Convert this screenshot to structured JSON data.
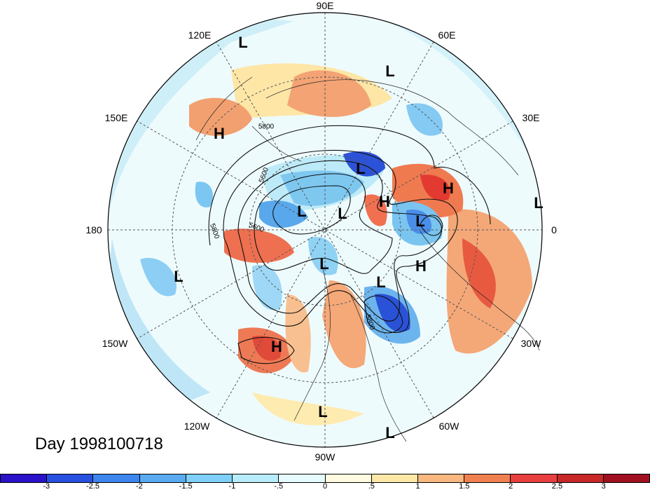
{
  "title": "Day 1998100718",
  "longitude_labels": [
    {
      "text": "90E",
      "pos": "top"
    },
    {
      "text": "60E",
      "pos": "top-right"
    },
    {
      "text": "30E",
      "pos": "right-upper"
    },
    {
      "text": "0",
      "pos": "right"
    },
    {
      "text": "30W",
      "pos": "right-lower"
    },
    {
      "text": "60W",
      "pos": "bottom-right"
    },
    {
      "text": "90W",
      "pos": "bottom"
    },
    {
      "text": "120W",
      "pos": "bottom-left"
    },
    {
      "text": "150W",
      "pos": "left-lower"
    },
    {
      "text": "180",
      "pos": "left"
    },
    {
      "text": "150E",
      "pos": "left-upper"
    },
    {
      "text": "120E",
      "pos": "top-left"
    }
  ],
  "pressure_centers": [
    "L",
    "L",
    "H",
    "L",
    "L",
    "L",
    "H",
    "H",
    "L",
    "L",
    "H",
    "L",
    "L",
    "H",
    "L",
    "L",
    "L"
  ],
  "contour_labels": [
    "5800",
    "5800",
    "5800",
    "5600",
    "5600",
    "5800"
  ],
  "colorbar": {
    "ticks": [
      "-3",
      "-2.5",
      "-2",
      "-1.5",
      "-1",
      "-.5",
      "0",
      ".5",
      "1",
      "1.5",
      "2",
      "2.5",
      "3"
    ],
    "colors": [
      "#2a12c8",
      "#2750e0",
      "#3c86ee",
      "#5aaaf2",
      "#7ed0f8",
      "#b8ecfa",
      "#e6fbfd",
      "#fffbe0",
      "#fde8a8",
      "#f8b880",
      "#f08050",
      "#e84040",
      "#c82828",
      "#a01020"
    ]
  }
}
